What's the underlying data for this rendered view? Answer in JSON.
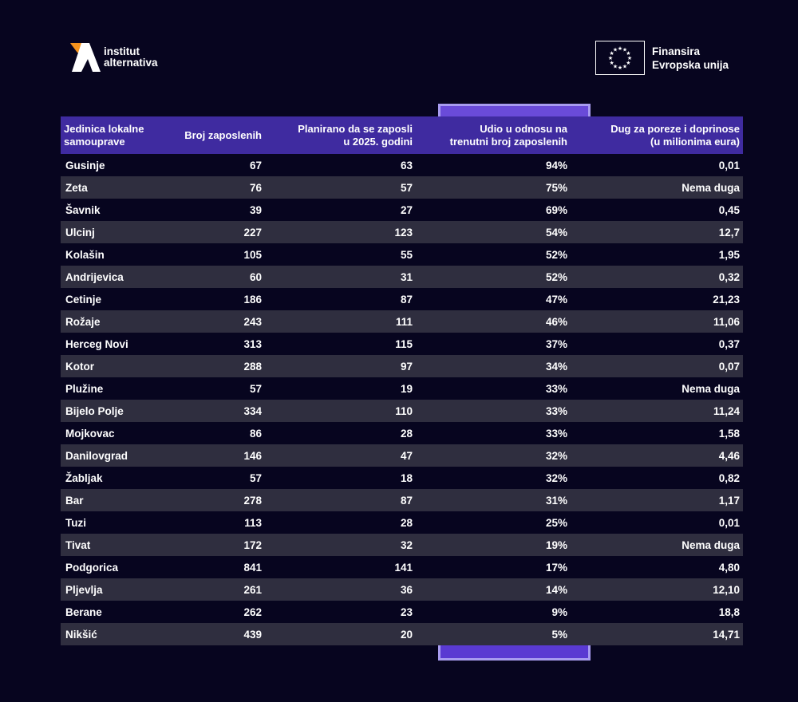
{
  "logo": {
    "line1": "institut",
    "line2": "alternativa",
    "accent": "#f7941d"
  },
  "funding": {
    "line1": "Finansira",
    "line2": "Evropska unija"
  },
  "chart_data": {
    "type": "table",
    "title": "",
    "columns": [
      "Jedinica lokalne samouprave",
      "Broj zaposlenih",
      "Planirano da se zaposli u 2025. godini",
      "Udio u odnosu na trenutni broj zaposlenih",
      "Dug za poreze i doprinose (u milionima eura)"
    ],
    "header_lines": [
      [
        "Jedinica lokalne",
        "samouprave"
      ],
      [
        "Broj zaposlenih"
      ],
      [
        "Planirano da se zaposli",
        "u 2025. godini"
      ],
      [
        "Udio u odnosu na",
        "trenutni broj zaposlenih"
      ],
      [
        "Dug za poreze i doprinose",
        "(u milionima eura)"
      ]
    ],
    "highlight_column": 3,
    "rows": [
      [
        "Gusinje",
        "67",
        "63",
        "94%",
        "0,01"
      ],
      [
        "Zeta",
        "76",
        "57",
        "75%",
        "Nema duga"
      ],
      [
        "Šavnik",
        "39",
        "27",
        "69%",
        "0,45"
      ],
      [
        "Ulcinj",
        "227",
        "123",
        "54%",
        "12,7"
      ],
      [
        "Kolašin",
        "105",
        "55",
        "52%",
        "1,95"
      ],
      [
        "Andrijevica",
        "60",
        "31",
        "52%",
        "0,32"
      ],
      [
        "Cetinje",
        "186",
        "87",
        "47%",
        "21,23"
      ],
      [
        "Rožaje",
        "243",
        "111",
        "46%",
        "11,06"
      ],
      [
        "Herceg Novi",
        "313",
        "115",
        "37%",
        "0,37"
      ],
      [
        "Kotor",
        "288",
        "97",
        "34%",
        "0,07"
      ],
      [
        "Plužine",
        "57",
        "19",
        "33%",
        "Nema duga"
      ],
      [
        "Bijelo Polje",
        "334",
        "110",
        "33%",
        "11,24"
      ],
      [
        "Mojkovac",
        "86",
        "28",
        "33%",
        "1,58"
      ],
      [
        "Danilovgrad",
        "146",
        "47",
        "32%",
        "4,46"
      ],
      [
        "Žabljak",
        "57",
        "18",
        "32%",
        "0,82"
      ],
      [
        "Bar",
        "278",
        "87",
        "31%",
        "1,17"
      ],
      [
        "Tuzi",
        "113",
        "28",
        "25%",
        "0,01"
      ],
      [
        "Tivat",
        "172",
        "32",
        "19%",
        "Nema duga"
      ],
      [
        "Podgorica",
        "841",
        "141",
        "17%",
        "4,80"
      ],
      [
        "Pljevlja",
        "261",
        "36",
        "14%",
        "12,10"
      ],
      [
        "Berane",
        "262",
        "23",
        "9%",
        "18,8"
      ],
      [
        "Nikšić",
        "439",
        "20",
        "5%",
        "14,71"
      ]
    ]
  }
}
